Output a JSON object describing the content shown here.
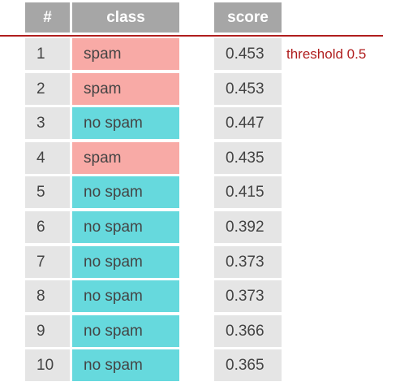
{
  "header": {
    "num": "#",
    "class": "class",
    "score": "score"
  },
  "threshold": {
    "label": "threshold 0.5",
    "color": "#b01e1e"
  },
  "colors": {
    "spam": "#f8aaa6",
    "no_spam": "#66d9dd",
    "header": "#a6a6a6",
    "cell": "#e5e5e5"
  },
  "rows": [
    {
      "num": "1",
      "class": "spam",
      "score": "0.453"
    },
    {
      "num": "2",
      "class": "spam",
      "score": "0.453"
    },
    {
      "num": "3",
      "class": "no spam",
      "score": "0.447"
    },
    {
      "num": "4",
      "class": "spam",
      "score": "0.435"
    },
    {
      "num": "5",
      "class": "no spam",
      "score": "0.415"
    },
    {
      "num": "6",
      "class": "no spam",
      "score": "0.392"
    },
    {
      "num": "7",
      "class": "no spam",
      "score": "0.373"
    },
    {
      "num": "8",
      "class": "no spam",
      "score": "0.373"
    },
    {
      "num": "9",
      "class": "no spam",
      "score": "0.366"
    },
    {
      "num": "10",
      "class": "no spam",
      "score": "0.365"
    }
  ]
}
